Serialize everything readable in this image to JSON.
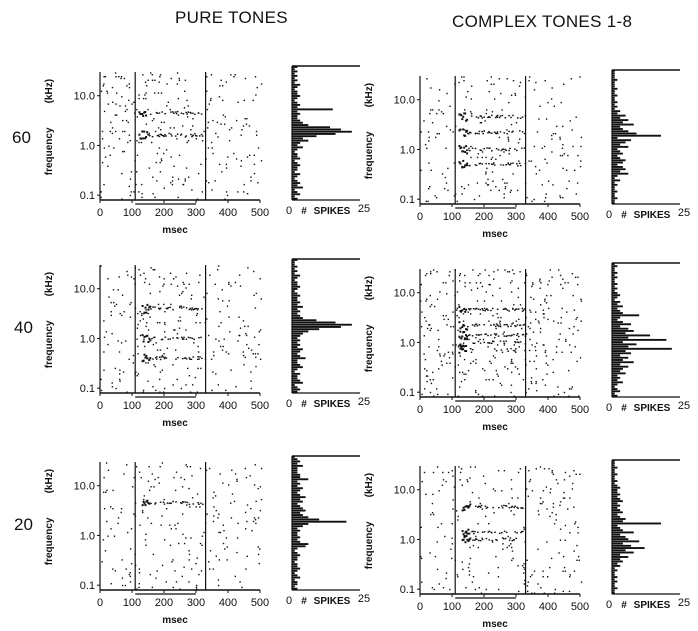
{
  "column_titles": [
    "PURE TONES",
    "COMPLEX TONES 1-8"
  ],
  "row_labels": [
    "60",
    "40",
    "20"
  ],
  "colors": {
    "ink": "#111111",
    "background": "#ffffff"
  },
  "chart_data": {
    "type": "scatter",
    "description_of_layout": "3 rows (stimulus level) x 2 columns (stimulus type); each cell has a dot raster and a horizontal spike-count histogram",
    "raster": {
      "xlabel": "msec",
      "ylabel": "frequency",
      "yunit": "(kHz)",
      "xlim": [
        0,
        500
      ],
      "ylim": [
        0.08,
        30
      ],
      "yscale": "log",
      "xticks": [
        0,
        100,
        200,
        300,
        400,
        500
      ],
      "yticks": [
        0.1,
        1.0,
        10.0
      ],
      "ytick_labels": [
        "0.1",
        "1.0",
        "10.0"
      ],
      "stimulus_markers_ms": [
        110,
        330
      ],
      "stimulus_bar_ms": [
        110,
        300
      ]
    },
    "histogram": {
      "xlabel_prefix": "#",
      "xlabel": "SPIKES",
      "xlim": [
        0,
        25
      ],
      "xtick_labels": [
        "0",
        "25"
      ],
      "bins": 60
    },
    "panels": [
      {
        "condition": "PURE TONES",
        "level": "60",
        "density": 0.1,
        "burst_khz": [
          4.5,
          1.6
        ],
        "burst_ms": [
          120,
          320
        ],
        "hist": [
          2,
          1,
          3,
          2,
          1,
          4,
          2,
          3,
          2,
          1,
          2,
          3,
          1,
          2,
          2,
          3,
          2,
          1,
          3,
          2,
          2,
          1,
          2,
          4,
          2,
          3,
          6,
          4,
          9,
          16,
          22,
          18,
          14,
          6,
          4,
          3,
          2,
          2,
          3,
          2,
          15,
          2,
          3,
          2,
          1,
          2,
          3,
          2,
          2,
          1,
          2,
          3,
          1,
          2,
          1,
          2,
          1,
          2,
          1,
          2
        ]
      },
      {
        "condition": "COMPLEX TONES 1-8",
        "level": "60",
        "density": 0.08,
        "burst_khz": [
          4.5,
          2.2,
          1.0,
          0.5
        ],
        "burst_ms": [
          120,
          330
        ],
        "hist": [
          1,
          1,
          2,
          1,
          1,
          2,
          1,
          1,
          2,
          1,
          3,
          1,
          2,
          6,
          3,
          5,
          4,
          2,
          4,
          5,
          3,
          2,
          4,
          3,
          2,
          6,
          3,
          5,
          7,
          2,
          18,
          9,
          6,
          4,
          3,
          8,
          4,
          6,
          3,
          5,
          2,
          3,
          1,
          2,
          1,
          2,
          1,
          1,
          2,
          1,
          1,
          2,
          1,
          1,
          1,
          2,
          1,
          1,
          1,
          1
        ]
      },
      {
        "condition": "PURE TONES",
        "level": "40",
        "density": 0.1,
        "burst_khz": [
          4.0,
          1.0,
          0.4
        ],
        "burst_ms": [
          130,
          320
        ],
        "hist": [
          2,
          3,
          2,
          1,
          4,
          3,
          2,
          2,
          3,
          1,
          2,
          4,
          3,
          2,
          2,
          5,
          3,
          2,
          3,
          4,
          2,
          3,
          2,
          3,
          2,
          3,
          4,
          6,
          10,
          18,
          22,
          16,
          9,
          4,
          3,
          2,
          3,
          2,
          4,
          2,
          3,
          2,
          2,
          3,
          2,
          1,
          2,
          3,
          2,
          2,
          1,
          2,
          3,
          1,
          2,
          1,
          2,
          1,
          1,
          2
        ]
      },
      {
        "condition": "COMPLEX TONES 1-8",
        "level": "40",
        "density": 0.13,
        "burst_khz": [
          4.5,
          2.2,
          1.4,
          1.0,
          0.7
        ],
        "burst_ms": [
          120,
          330
        ],
        "hist": [
          2,
          1,
          3,
          2,
          1,
          2,
          4,
          2,
          3,
          2,
          5,
          3,
          4,
          6,
          3,
          8,
          4,
          6,
          3,
          7,
          5,
          22,
          6,
          9,
          4,
          20,
          6,
          14,
          5,
          8,
          6,
          3,
          7,
          4,
          2,
          3,
          10,
          4,
          3,
          2,
          4,
          2,
          3,
          1,
          2,
          3,
          2,
          1,
          2,
          1,
          2,
          1,
          1,
          2,
          1,
          2,
          1,
          1,
          2,
          1
        ]
      },
      {
        "condition": "PURE TONES",
        "level": "20",
        "density": 0.07,
        "burst_khz": [
          4.5
        ],
        "burst_ms": [
          130,
          320
        ],
        "hist": [
          2,
          1,
          2,
          2,
          1,
          3,
          2,
          1,
          2,
          3,
          2,
          2,
          1,
          2,
          2,
          3,
          2,
          1,
          2,
          5,
          6,
          3,
          2,
          3,
          2,
          2,
          3,
          2,
          4,
          6,
          20,
          10,
          6,
          4,
          3,
          5,
          4,
          3,
          2,
          4,
          3,
          5,
          3,
          2,
          3,
          4,
          2,
          3,
          2,
          6,
          3,
          3,
          2,
          2,
          2,
          4,
          2,
          3,
          2,
          1
        ]
      },
      {
        "condition": "COMPLEX TONES 1-8",
        "level": "20",
        "density": 0.08,
        "burst_khz": [
          4.5,
          1.4,
          1.0
        ],
        "burst_ms": [
          130,
          320
        ],
        "hist": [
          1,
          1,
          2,
          1,
          1,
          2,
          1,
          2,
          1,
          1,
          2,
          1,
          3,
          2,
          4,
          3,
          6,
          3,
          8,
          5,
          12,
          7,
          4,
          10,
          6,
          5,
          3,
          8,
          4,
          3,
          2,
          18,
          4,
          5,
          3,
          2,
          4,
          3,
          2,
          3,
          2,
          4,
          3,
          2,
          3,
          2,
          2,
          3,
          2,
          1,
          2,
          1,
          1,
          2,
          1,
          1,
          2,
          1,
          1,
          1
        ]
      }
    ]
  }
}
